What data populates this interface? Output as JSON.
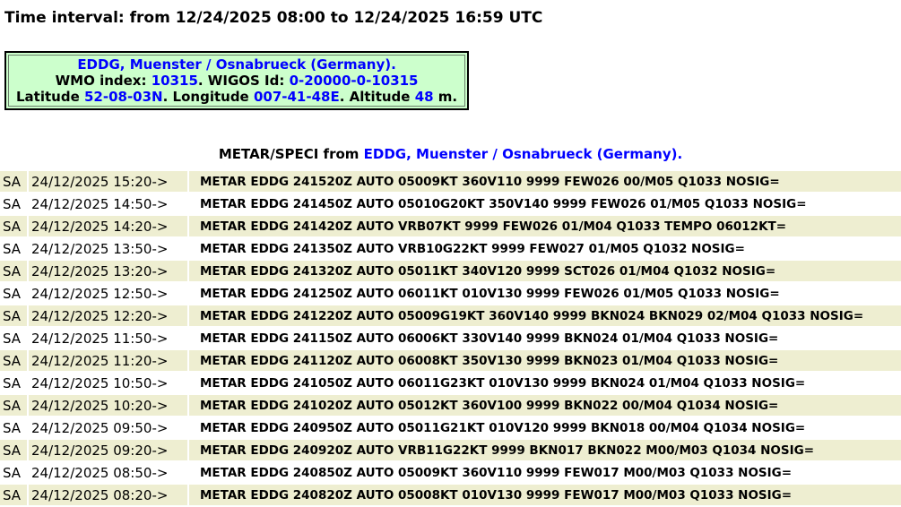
{
  "title": "Time interval: from 12/24/2025 08:00 to 12/24/2025 16:59 UTC",
  "colors": {
    "accent_blue": "#0000ff",
    "station_box_green": "#ccffcc",
    "row_highlight_beige": "#eeeed1"
  },
  "station_box": {
    "name": "EDDG, Muenster / Osnabrueck (Germany).",
    "wmo_label": "WMO index: ",
    "wmo_value": "10315",
    "wigos_label": ". WIGOS Id: ",
    "wigos_value": "0-20000-0-10315",
    "lat_label": "Latitude ",
    "lat_value": "52-08-03N",
    "lon_label": ". Longitude ",
    "lon_value": "007-41-48E",
    "alt_label": ". Altitude ",
    "alt_value": "48",
    "alt_unit": " m."
  },
  "heading": {
    "prefix": "METAR/SPECI from ",
    "station": "EDDG, Muenster / Osnabrueck (Germany)."
  },
  "table": {
    "rows": [
      {
        "type": "SA",
        "datetime": "24/12/2025 15:20->",
        "metar": "METAR EDDG 241520Z AUTO 05009KT 360V110 9999 FEW026 00/M05 Q1033 NOSIG="
      },
      {
        "type": "SA",
        "datetime": "24/12/2025 14:50->",
        "metar": "METAR EDDG 241450Z AUTO 05010G20KT 350V140 9999 FEW026 01/M05 Q1033 NOSIG="
      },
      {
        "type": "SA",
        "datetime": "24/12/2025 14:20->",
        "metar": "METAR EDDG 241420Z AUTO VRB07KT 9999 FEW026 01/M04 Q1033 TEMPO 06012KT="
      },
      {
        "type": "SA",
        "datetime": "24/12/2025 13:50->",
        "metar": "METAR EDDG 241350Z AUTO VRB10G22KT 9999 FEW027 01/M05 Q1032 NOSIG="
      },
      {
        "type": "SA",
        "datetime": "24/12/2025 13:20->",
        "metar": "METAR EDDG 241320Z AUTO 05011KT 340V120 9999 SCT026 01/M04 Q1032 NOSIG="
      },
      {
        "type": "SA",
        "datetime": "24/12/2025 12:50->",
        "metar": "METAR EDDG 241250Z AUTO 06011KT 010V130 9999 FEW026 01/M05 Q1033 NOSIG="
      },
      {
        "type": "SA",
        "datetime": "24/12/2025 12:20->",
        "metar": "METAR EDDG 241220Z AUTO 05009G19KT 360V140 9999 BKN024 BKN029 02/M04 Q1033 NOSIG="
      },
      {
        "type": "SA",
        "datetime": "24/12/2025 11:50->",
        "metar": "METAR EDDG 241150Z AUTO 06006KT 330V140 9999 BKN024 01/M04 Q1033 NOSIG="
      },
      {
        "type": "SA",
        "datetime": "24/12/2025 11:20->",
        "metar": "METAR EDDG 241120Z AUTO 06008KT 350V130 9999 BKN023 01/M04 Q1033 NOSIG="
      },
      {
        "type": "SA",
        "datetime": "24/12/2025 10:50->",
        "metar": "METAR EDDG 241050Z AUTO 06011G23KT 010V130 9999 BKN024 01/M04 Q1033 NOSIG="
      },
      {
        "type": "SA",
        "datetime": "24/12/2025 10:20->",
        "metar": "METAR EDDG 241020Z AUTO 05012KT 360V100 9999 BKN022 00/M04 Q1034 NOSIG="
      },
      {
        "type": "SA",
        "datetime": "24/12/2025 09:50->",
        "metar": "METAR EDDG 240950Z AUTO 05011G21KT 010V120 9999 BKN018 00/M04 Q1034 NOSIG="
      },
      {
        "type": "SA",
        "datetime": "24/12/2025 09:20->",
        "metar": "METAR EDDG 240920Z AUTO VRB11G22KT 9999 BKN017 BKN022 M00/M03 Q1034 NOSIG="
      },
      {
        "type": "SA",
        "datetime": "24/12/2025 08:50->",
        "metar": "METAR EDDG 240850Z AUTO 05009KT 360V110 9999 FEW017 M00/M03 Q1033 NOSIG="
      },
      {
        "type": "SA",
        "datetime": "24/12/2025 08:20->",
        "metar": "METAR EDDG 240820Z AUTO 05008KT 010V130 9999 FEW017 M00/M03 Q1033 NOSIG="
      }
    ]
  }
}
